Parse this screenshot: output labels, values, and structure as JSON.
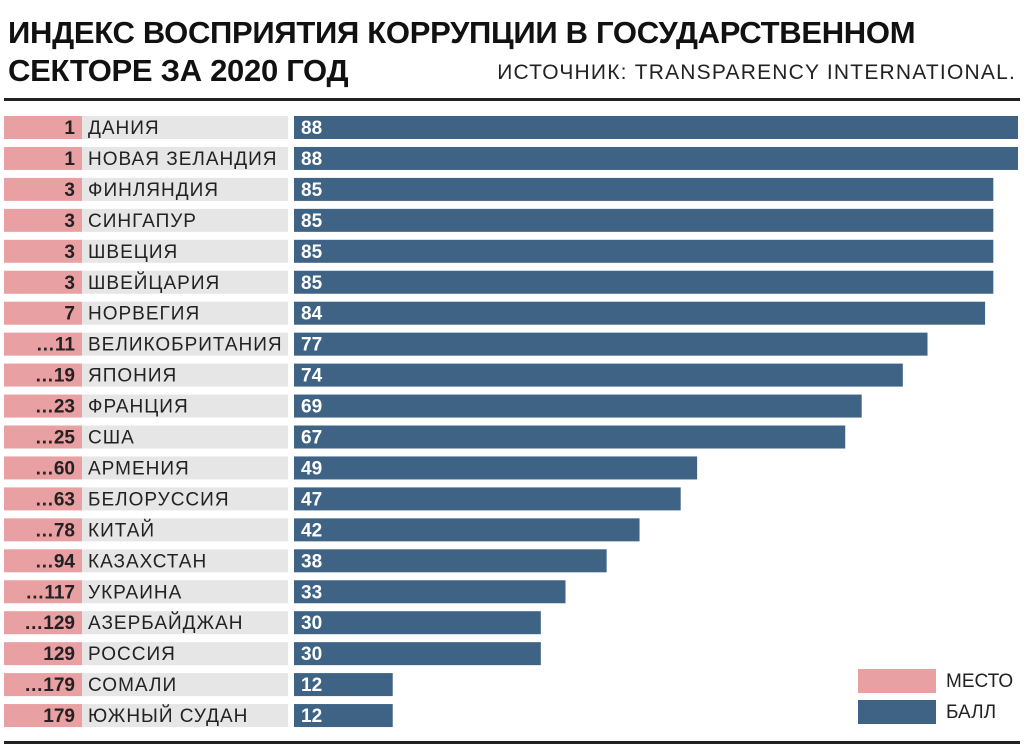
{
  "colors": {
    "rank": "#e8a0a2",
    "name_bg": "#e6e6e6",
    "score": "#3e6385",
    "score_text": "#ffffff",
    "text": "#222222"
  },
  "header": {
    "title_line1": "ИНДЕКС ВОСПРИЯТИЯ КОРРУПЦИИ В ГОСУДАРСТВЕННОМ",
    "title_line2": "СЕКТОРЕ ЗА 2020 ГОД",
    "source": "ИСТОЧНИК: TRANSPARENCY INTERNATIONAL."
  },
  "legend": {
    "rank_label": "МЕСТО",
    "score_label": "БАЛЛ"
  },
  "chart_data": {
    "type": "bar",
    "orientation": "horizontal",
    "xlim": [
      0,
      88
    ],
    "grid": false,
    "legend_position": "bottom-right",
    "rows": [
      {
        "rank": "1",
        "country": "ДАНИЯ",
        "score": 88
      },
      {
        "rank": "1",
        "country": "НОВАЯ ЗЕЛАНДИЯ",
        "score": 88
      },
      {
        "rank": "3",
        "country": "ФИНЛЯНДИЯ",
        "score": 85
      },
      {
        "rank": "3",
        "country": "СИНГАПУР",
        "score": 85
      },
      {
        "rank": "3",
        "country": "ШВЕЦИЯ",
        "score": 85
      },
      {
        "rank": "3",
        "country": "ШВЕЙЦАРИЯ",
        "score": 85
      },
      {
        "rank": "7",
        "country": "НОРВЕГИЯ",
        "score": 84
      },
      {
        "rank": "…11",
        "country": "ВЕЛИКОБРИТАНИЯ",
        "score": 77
      },
      {
        "rank": "…19",
        "country": "ЯПОНИЯ",
        "score": 74
      },
      {
        "rank": "…23",
        "country": "ФРАНЦИЯ",
        "score": 69
      },
      {
        "rank": "…25",
        "country": "США",
        "score": 67
      },
      {
        "rank": "…60",
        "country": "АРМЕНИЯ",
        "score": 49
      },
      {
        "rank": "…63",
        "country": "БЕЛОРУССИЯ",
        "score": 47
      },
      {
        "rank": "…78",
        "country": "КИТАЙ",
        "score": 42
      },
      {
        "rank": "…94",
        "country": "КАЗАХСТАН",
        "score": 38
      },
      {
        "rank": "…117",
        "country": "УКРАИНА",
        "score": 33
      },
      {
        "rank": "…129",
        "country": "АЗЕРБАЙДЖАН",
        "score": 30
      },
      {
        "rank": "129",
        "country": "РОССИЯ",
        "score": 30
      },
      {
        "rank": "…179",
        "country": "СОМАЛИ",
        "score": 12
      },
      {
        "rank": "179",
        "country": "ЮЖНЫЙ СУДАН",
        "score": 12
      }
    ]
  }
}
